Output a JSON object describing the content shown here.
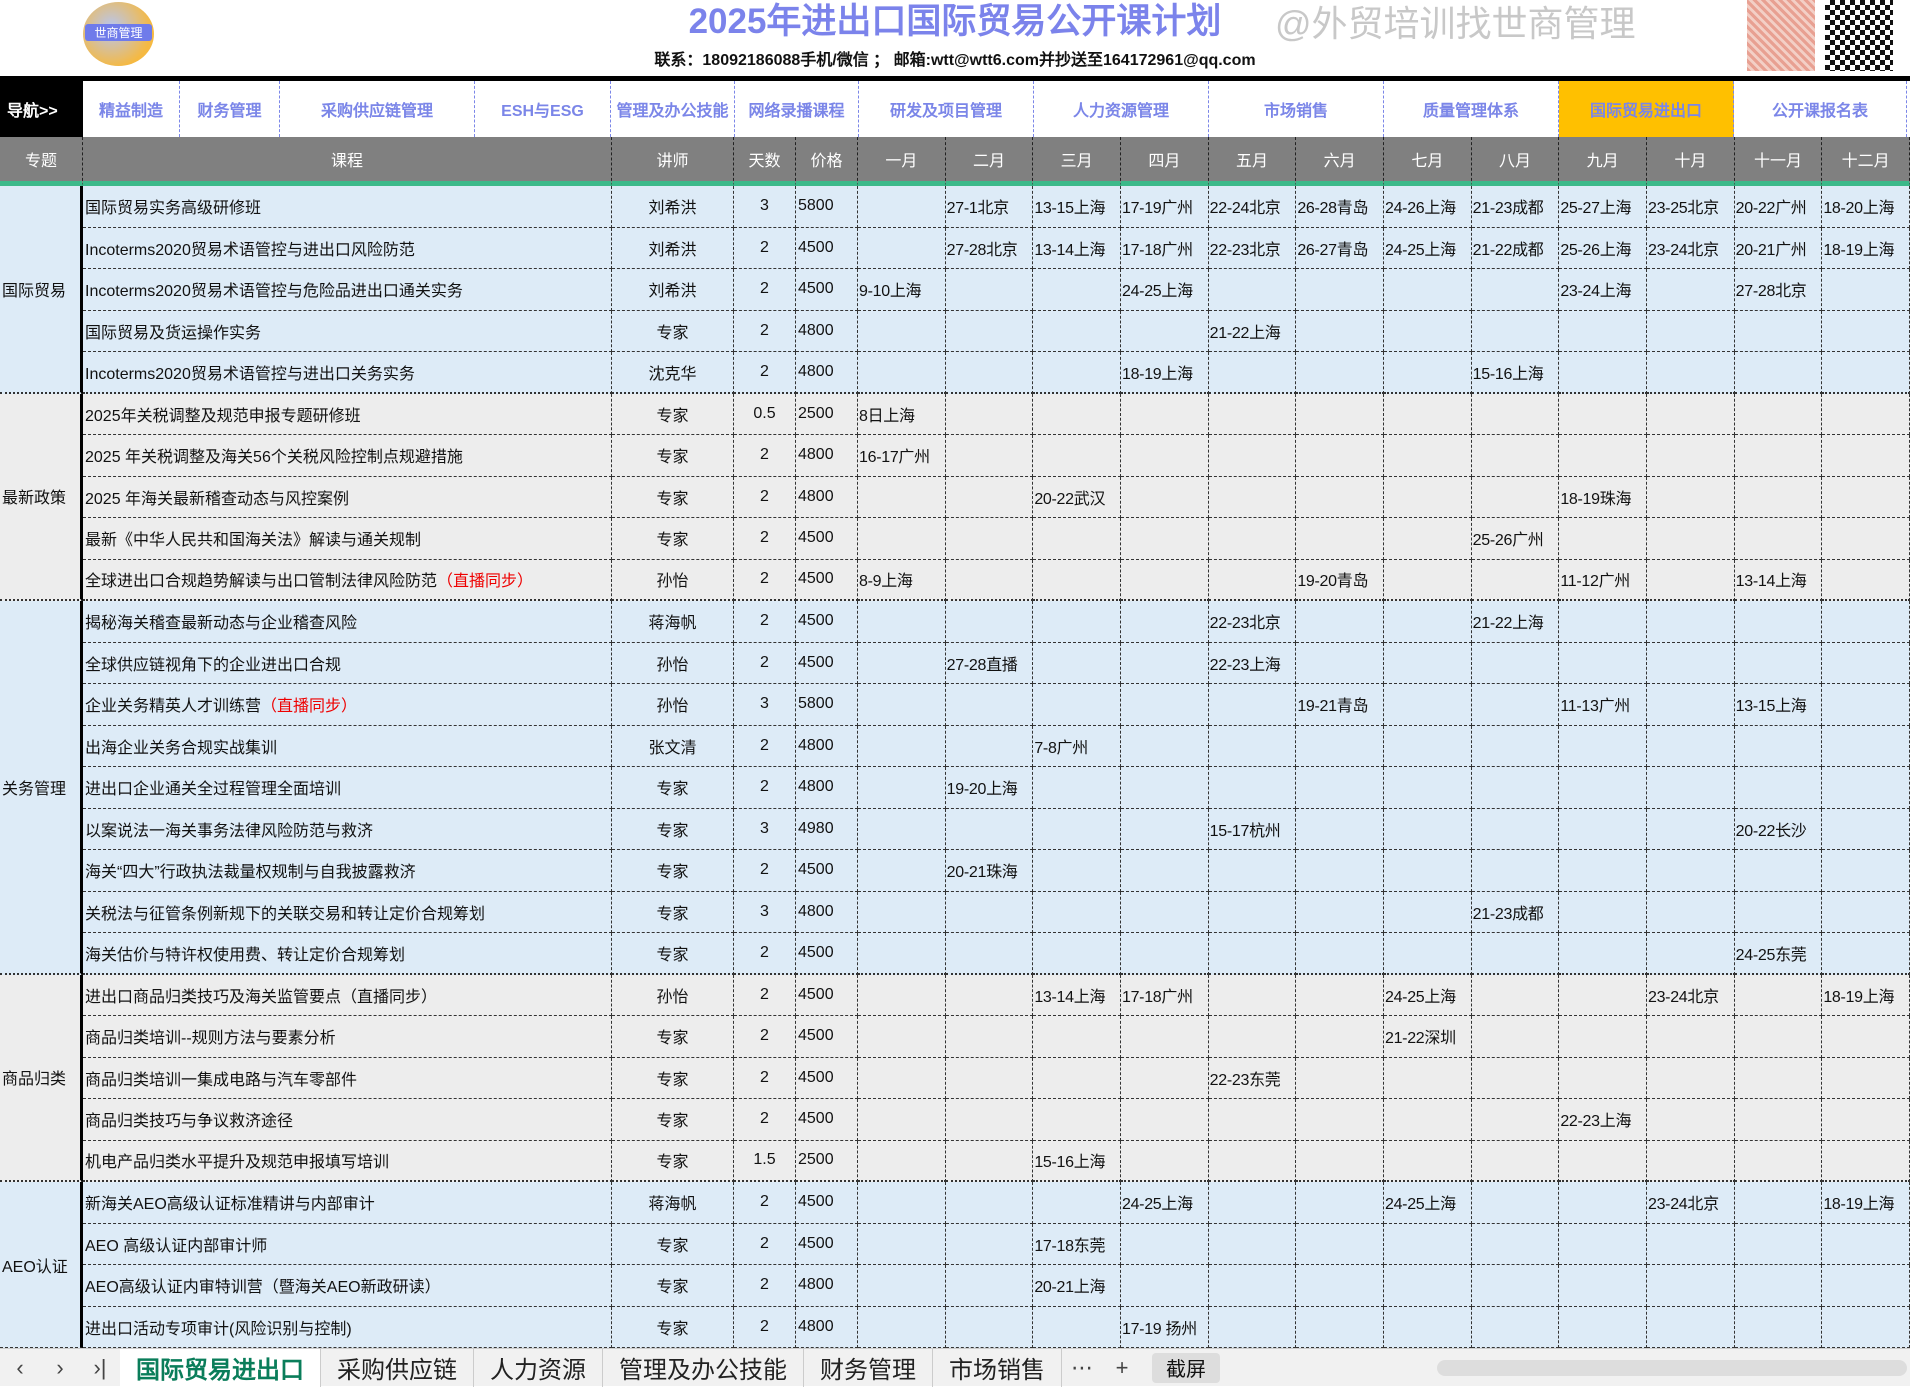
{
  "header": {
    "title": "2025年进出口国际贸易公开课计划",
    "contact": "联系：18092186088手机/微信 ； 邮箱:wtt@wtt6.com并抄送至164172961@qq.com",
    "logo_text": "世商管理"
  },
  "nav": {
    "lead": "导航>>",
    "items": [
      "精益制造",
      "财务管理",
      "采购供应链管理",
      "ESH与ESG",
      "管理及办公技能",
      "网络录播课程",
      "研发及项目管理",
      "人力资源管理",
      "市场销售",
      "质量管理体系",
      "国际贸易进出口",
      "公开课报名表"
    ],
    "active": "国际贸易进出口",
    "active_color": "#ffc000"
  },
  "table": {
    "headers": [
      "专题",
      "课程",
      "讲师",
      "天数",
      "价格",
      "一月",
      "二月",
      "三月",
      "四月",
      "五月",
      "六月",
      "七月",
      "八月",
      "九月",
      "十月",
      "十一月",
      "十二月"
    ],
    "groups": [
      {
        "name": "国际贸易",
        "rows": [
          {
            "course": "国际贸易实务高级研修班",
            "teacher": "刘希洪",
            "days": "3",
            "price": "5800",
            "months": [
              "",
              "27-1北京",
              "13-15上海",
              "17-19广州",
              "22-24北京",
              "26-28青岛",
              "24-26上海",
              "21-23成都",
              "25-27上海",
              "23-25北京",
              "20-22广州",
              "18-20上海"
            ]
          },
          {
            "course": "Incoterms2020贸易术语管控与进出口风险防范",
            "teacher": "刘希洪",
            "days": "2",
            "price": "4500",
            "months": [
              "",
              "27-28北京",
              "13-14上海",
              "17-18广州",
              "22-23北京",
              "26-27青岛",
              "24-25上海",
              "21-22成都",
              "25-26上海",
              "23-24北京",
              "20-21广州",
              "18-19上海"
            ]
          },
          {
            "course": "Incoterms2020贸易术语管控与危险品进出口通关实务",
            "teacher": "刘希洪",
            "days": "2",
            "price": "4500",
            "months": [
              "9-10上海",
              "",
              "",
              "24-25上海",
              "",
              "",
              "",
              "",
              "23-24上海",
              "",
              "27-28北京",
              ""
            ]
          },
          {
            "course": "国际贸易及货运操作实务",
            "teacher": "专家",
            "days": "2",
            "price": "4800",
            "months": [
              "",
              "",
              "",
              "",
              "21-22上海",
              "",
              "",
              "",
              "",
              "",
              "",
              ""
            ]
          },
          {
            "course": "Incoterms2020贸易术语管控与进出口关务实务",
            "teacher": "沈克华",
            "days": "2",
            "price": "4800",
            "months": [
              "",
              "",
              "",
              "18-19上海",
              "",
              "",
              "",
              "15-16上海",
              "",
              "",
              "",
              ""
            ]
          }
        ]
      },
      {
        "name": "最新政策",
        "rows": [
          {
            "course": "2025年关税调整及规范申报专题研修班",
            "teacher": "专家",
            "days": "0.5",
            "price": "2500",
            "months": [
              "8日上海",
              "",
              "",
              "",
              "",
              "",
              "",
              "",
              "",
              "",
              "",
              ""
            ]
          },
          {
            "course": "2025 年关税调整及海关56个关税风险控制点规避措施",
            "teacher": "专家",
            "days": "2",
            "price": "4800",
            "months": [
              "16-17广州",
              "",
              "",
              "",
              "",
              "",
              "",
              "",
              "",
              "",
              "",
              ""
            ]
          },
          {
            "course": "2025 年海关最新稽查动态与风控案例",
            "teacher": "专家",
            "days": "2",
            "price": "4800",
            "months": [
              "",
              "",
              "20-22武汉",
              "",
              "",
              "",
              "",
              "",
              "18-19珠海",
              "",
              "",
              ""
            ]
          },
          {
            "course": "最新《中华人民共和国海关法》解读与通关规制",
            "teacher": "专家",
            "days": "2",
            "price": "4500",
            "months": [
              "",
              "",
              "",
              "",
              "",
              "",
              "",
              "25-26广州",
              "",
              "",
              "",
              ""
            ]
          },
          {
            "course": "全球进出口合规趋势解读与出口管制法律风险防范",
            "note": "（直播同步）",
            "teacher": "孙怡",
            "days": "2",
            "price": "4500",
            "months": [
              "8-9上海",
              "",
              "",
              "",
              "",
              "19-20青岛",
              "",
              "",
              "11-12广州",
              "",
              "13-14上海",
              ""
            ]
          }
        ]
      },
      {
        "name": "关务管理",
        "rows": [
          {
            "course": "揭秘海关稽查最新动态与企业稽查风险",
            "teacher": "蒋海帆",
            "days": "2",
            "price": "4500",
            "months": [
              "",
              "",
              "",
              "",
              "22-23北京",
              "",
              "",
              "21-22上海",
              "",
              "",
              "",
              ""
            ]
          },
          {
            "course": "全球供应链视角下的企业进出口合规",
            "teacher": "孙怡",
            "days": "2",
            "price": "4500",
            "months": [
              "",
              "27-28直播",
              "",
              "",
              "22-23上海",
              "",
              "",
              "",
              "",
              "",
              "",
              ""
            ]
          },
          {
            "course": "企业关务精英人才训练营",
            "note": "（直播同步）",
            "teacher": "孙怡",
            "days": "3",
            "price": "5800",
            "months": [
              "",
              "",
              "",
              "",
              "",
              "19-21青岛",
              "",
              "",
              "11-13广州",
              "",
              "13-15上海",
              ""
            ]
          },
          {
            "course": "出海企业关务合规实战集训",
            "teacher": "张文清",
            "days": "2",
            "price": "4800",
            "months": [
              "",
              "",
              "7-8广州",
              "",
              "",
              "",
              "",
              "",
              "",
              "",
              "",
              ""
            ]
          },
          {
            "course": "进出口企业通关全过程管理全面培训",
            "teacher": "专家",
            "days": "2",
            "price": "4800",
            "months": [
              "",
              "19-20上海",
              "",
              "",
              "",
              "",
              "",
              "",
              "",
              "",
              "",
              ""
            ]
          },
          {
            "course": "以案说法一海关事务法律风险防范与救济",
            "teacher": "专家",
            "days": "3",
            "price": "4980",
            "months": [
              "",
              "",
              "",
              "",
              "15-17杭州",
              "",
              "",
              "",
              "",
              "",
              "20-22长沙",
              ""
            ]
          },
          {
            "course": "海关“四大”行政执法裁量权规制与自我披露救济",
            "teacher": "专家",
            "days": "2",
            "price": "4500",
            "months": [
              "",
              "20-21珠海",
              "",
              "",
              "",
              "",
              "",
              "",
              "",
              "",
              "",
              ""
            ]
          },
          {
            "course": "关税法与征管条例新规下的关联交易和转让定价合规筹划",
            "teacher": "专家",
            "days": "3",
            "price": "4800",
            "months": [
              "",
              "",
              "",
              "",
              "",
              "",
              "",
              "21-23成都",
              "",
              "",
              "",
              ""
            ]
          },
          {
            "course": "海关估价与特许权使用费、转让定价合规筹划",
            "teacher": "专家",
            "days": "2",
            "price": "4500",
            "months": [
              "",
              "",
              "",
              "",
              "",
              "",
              "",
              "",
              "",
              "",
              "24-25东莞",
              ""
            ]
          }
        ]
      },
      {
        "name": "商品归类",
        "rows": [
          {
            "course": "进出口商品归类技巧及海关监管要点（直播同步）",
            "teacher": "孙怡",
            "days": "2",
            "price": "4500",
            "months": [
              "",
              "",
              "13-14上海",
              "17-18广州",
              "",
              "",
              "24-25上海",
              "",
              "",
              "23-24北京",
              "",
              "18-19上海"
            ]
          },
          {
            "course": "商品归类培训--规则方法与要素分析",
            "teacher": "专家",
            "days": "2",
            "price": "4500",
            "months": [
              "",
              "",
              "",
              "",
              "",
              "",
              "21-22深圳",
              "",
              "",
              "",
              "",
              ""
            ]
          },
          {
            "course": "商品归类培训一集成电路与汽车零部件",
            "teacher": "专家",
            "days": "2",
            "price": "4500",
            "months": [
              "",
              "",
              "",
              "",
              "22-23东莞",
              "",
              "",
              "",
              "",
              "",
              "",
              ""
            ]
          },
          {
            "course": "商品归类技巧与争议救济途径",
            "teacher": "专家",
            "days": "2",
            "price": "4500",
            "months": [
              "",
              "",
              "",
              "",
              "",
              "",
              "",
              "",
              "22-23上海",
              "",
              "",
              ""
            ]
          },
          {
            "course": "机电产品归类水平提升及规范申报填写培训",
            "teacher": "专家",
            "days": "1.5",
            "price": "2500",
            "months": [
              "",
              "",
              "15-16上海",
              "",
              "",
              "",
              "",
              "",
              "",
              "",
              "",
              ""
            ]
          }
        ]
      },
      {
        "name": "AEO认证",
        "rows": [
          {
            "course": "新海关AEO高级认证标准精讲与内部审计",
            "teacher": "蒋海帆",
            "days": "2",
            "price": "4500",
            "months": [
              "",
              "",
              "",
              "24-25上海",
              "",
              "",
              "24-25上海",
              "",
              "",
              "23-24北京",
              "",
              "18-19上海"
            ]
          },
          {
            "course": "AEO 高级认证内部审计师",
            "teacher": "专家",
            "days": "2",
            "price": "4500",
            "months": [
              "",
              "",
              "17-18东莞",
              "",
              "",
              "",
              "",
              "",
              "",
              "",
              "",
              ""
            ]
          },
          {
            "course": "AEO高级认证内审特训营（暨海关AEO新政研读）",
            "teacher": "专家",
            "days": "2",
            "price": "4800",
            "months": [
              "",
              "",
              "20-21上海",
              "",
              "",
              "",
              "",
              "",
              "",
              "",
              "",
              ""
            ]
          },
          {
            "course": "进出口活动专项审计(风险识别与控制)",
            "teacher": "专家",
            "days": "2",
            "price": "4800",
            "months": [
              "",
              "",
              "",
              "17-19 扬州",
              "",
              "",
              "",
              "",
              "",
              "",
              "",
              ""
            ]
          }
        ]
      }
    ]
  },
  "sheet_tabs": {
    "items": [
      "国际贸易进出口",
      "采购供应链",
      "人力资源",
      "管理及办公技能",
      "财务管理",
      "市场销售"
    ],
    "active": "国际贸易进出口",
    "more": "⋯",
    "add": "+",
    "tooltip": "截屏"
  },
  "watermark": "@外贸培训找世商管理"
}
